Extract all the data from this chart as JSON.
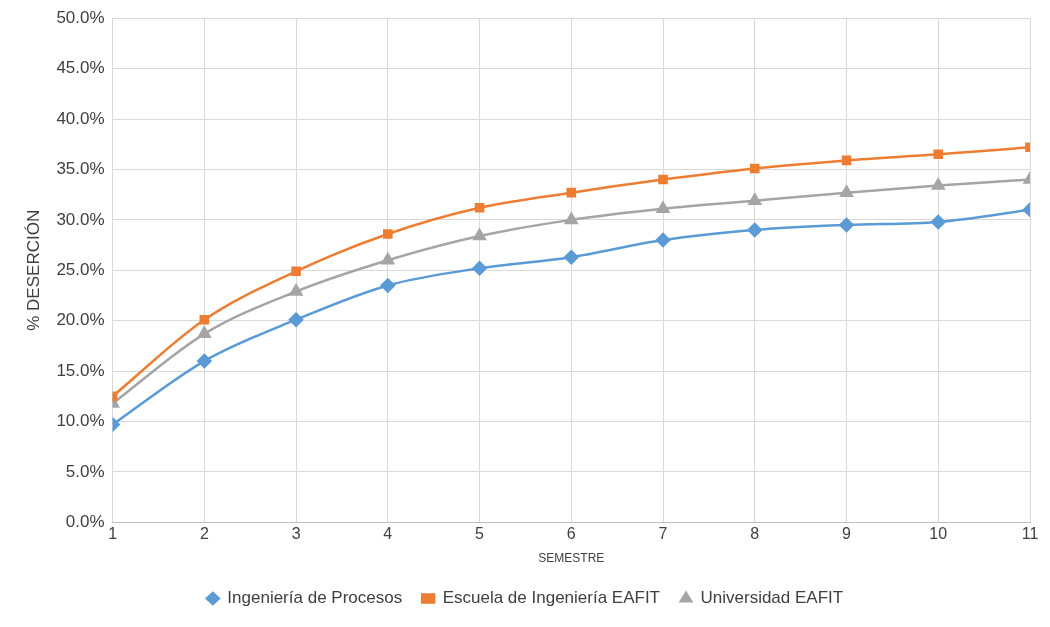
{
  "chart_data": {
    "type": "line",
    "xlabel": "SEMESTRE",
    "ylabel": "% DESERCIÓN",
    "x": [
      1,
      2,
      3,
      4,
      5,
      6,
      7,
      8,
      9,
      10,
      11
    ],
    "xlim": [
      1,
      11
    ],
    "xticks": [
      1,
      2,
      3,
      4,
      5,
      6,
      7,
      8,
      9,
      10,
      11
    ],
    "ylim": [
      0,
      50
    ],
    "yticks": [
      {
        "value": 0,
        "label": "0.0%"
      },
      {
        "value": 5,
        "label": "5.0%"
      },
      {
        "value": 10,
        "label": "10.0%"
      },
      {
        "value": 15,
        "label": "15.0%"
      },
      {
        "value": 20,
        "label": "20.0%"
      },
      {
        "value": 25,
        "label": "25.0%"
      },
      {
        "value": 30,
        "label": "30.0%"
      },
      {
        "value": 35,
        "label": "35.0%"
      },
      {
        "value": 40,
        "label": "40.0%"
      },
      {
        "value": 45,
        "label": "45.0%"
      },
      {
        "value": 50,
        "label": "50.0%"
      }
    ],
    "series": [
      {
        "name": "Ingeniería de Procesos",
        "color": "#5b9bd5",
        "marker": "diamond",
        "values": [
          9.7,
          16.0,
          20.1,
          23.5,
          25.2,
          26.3,
          28.0,
          29.0,
          29.5,
          29.8,
          31.0
        ]
      },
      {
        "name": "Escuela de Ingeniería EAFIT",
        "color": "#ed7d31",
        "marker": "square",
        "values": [
          12.5,
          20.1,
          24.9,
          28.6,
          31.2,
          32.7,
          34.0,
          35.1,
          35.9,
          36.5,
          37.2
        ]
      },
      {
        "name": "Universidad EAFIT",
        "color": "#a5a5a5",
        "marker": "triangle",
        "values": [
          11.8,
          18.7,
          22.9,
          26.0,
          28.4,
          30.0,
          31.1,
          31.9,
          32.7,
          33.4,
          34.0
        ]
      }
    ],
    "grid": true,
    "legend": "bottom",
    "line_style": "solid"
  }
}
